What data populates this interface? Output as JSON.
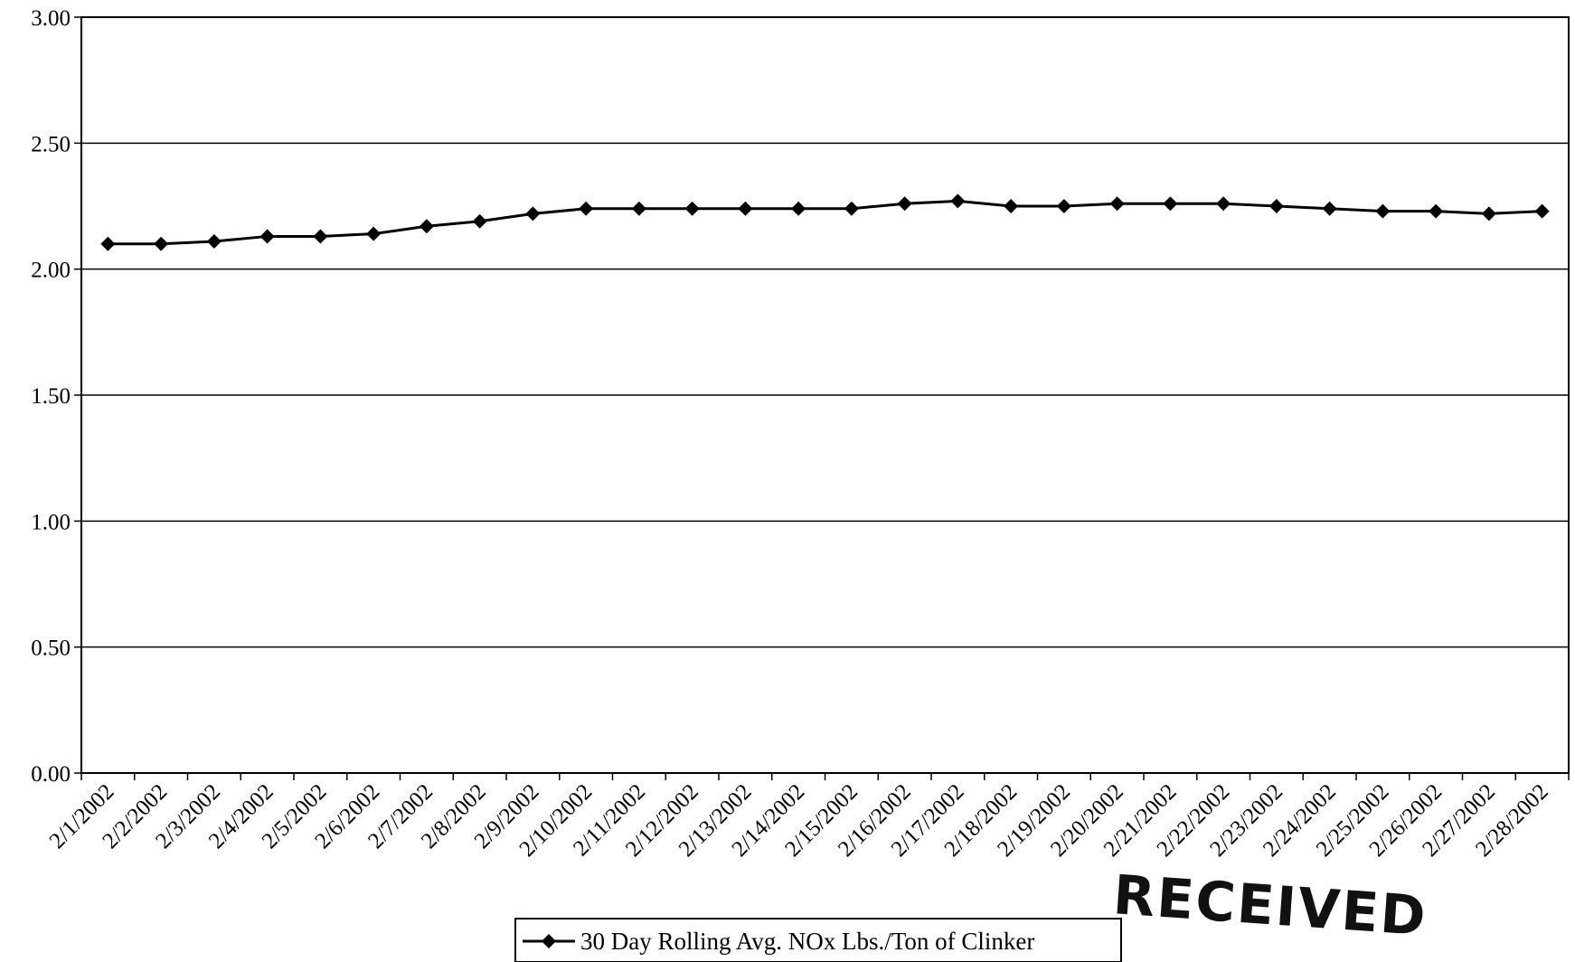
{
  "chart_data": {
    "type": "line",
    "title": "",
    "xlabel": "",
    "ylabel": "",
    "ylim": [
      0,
      3
    ],
    "yticks": [
      "0.00",
      "0.50",
      "1.00",
      "1.50",
      "2.00",
      "2.50",
      "3.00"
    ],
    "ytick_values": [
      0,
      0.5,
      1,
      1.5,
      2,
      2.5,
      3
    ],
    "grid": "horizontal",
    "legend_position": "bottom-center",
    "categories": [
      "2/1/2002",
      "2/2/2002",
      "2/3/2002",
      "2/4/2002",
      "2/5/2002",
      "2/6/2002",
      "2/7/2002",
      "2/8/2002",
      "2/9/2002",
      "2/10/2002",
      "2/11/2002",
      "2/12/2002",
      "2/13/2002",
      "2/14/2002",
      "2/15/2002",
      "2/16/2002",
      "2/17/2002",
      "2/18/2002",
      "2/19/2002",
      "2/20/2002",
      "2/21/2002",
      "2/22/2002",
      "2/23/2002",
      "2/24/2002",
      "2/25/2002",
      "2/26/2002",
      "2/27/2002",
      "2/28/2002"
    ],
    "series": [
      {
        "name": "30 Day Rolling Avg. NOx Lbs./Ton of Clinker",
        "color": "#000000",
        "marker": "diamond",
        "values": [
          2.1,
          2.1,
          2.11,
          2.13,
          2.13,
          2.14,
          2.17,
          2.19,
          2.22,
          2.24,
          2.24,
          2.24,
          2.24,
          2.24,
          2.24,
          2.26,
          2.27,
          2.25,
          2.25,
          2.26,
          2.26,
          2.26,
          2.25,
          2.24,
          2.23,
          2.23,
          2.22,
          2.23
        ]
      }
    ]
  },
  "stamp": {
    "text": "RECEIVED"
  }
}
